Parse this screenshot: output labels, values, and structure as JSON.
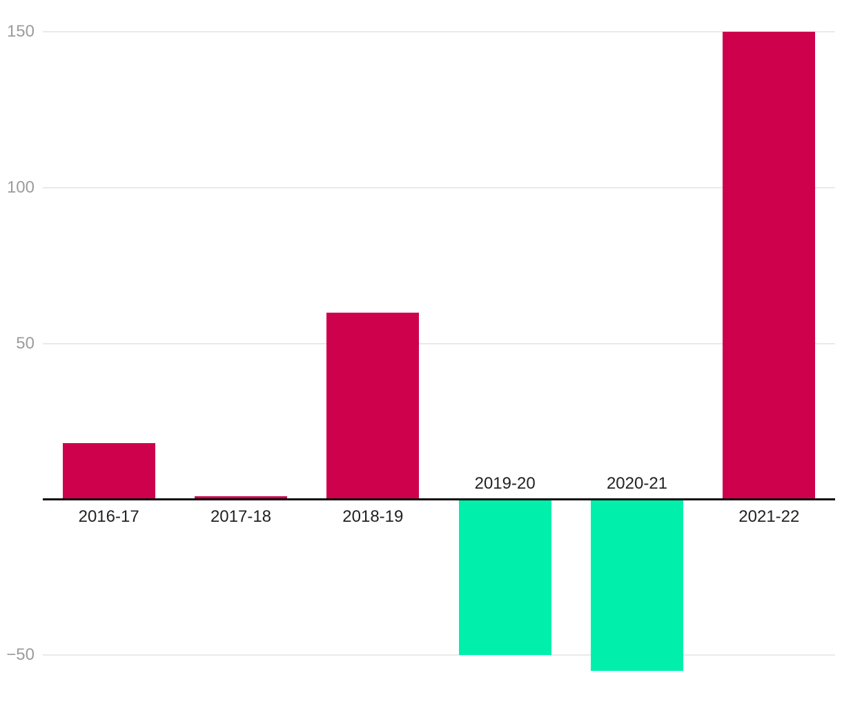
{
  "chart_data": {
    "type": "bar",
    "title": "",
    "xlabel": "",
    "ylabel": "",
    "categories": [
      "2016-17",
      "2017-18",
      "2018-19",
      "2019-20",
      "2020-21",
      "2021-22"
    ],
    "values": [
      18,
      1,
      60,
      -50,
      -55,
      150
    ],
    "ytick_values": [
      150,
      100,
      50,
      -50
    ],
    "ytick_labels": [
      "150",
      "100",
      "50",
      "−50"
    ],
    "ylim": [
      -65,
      160
    ],
    "grid": true,
    "legend": false,
    "zero_axis_line": true,
    "label_placement": "positive bars labeled below axis, negative bars labeled above axis",
    "colors": {
      "positive_bar": "#CE024C",
      "negative_bar": "#00F0AC",
      "gridline": "#E9E9E9",
      "ytick_text": "#9B9B9B",
      "xlabel_text": "#212121",
      "zero_axis": "#050505",
      "background": "#FFFFFF"
    }
  }
}
